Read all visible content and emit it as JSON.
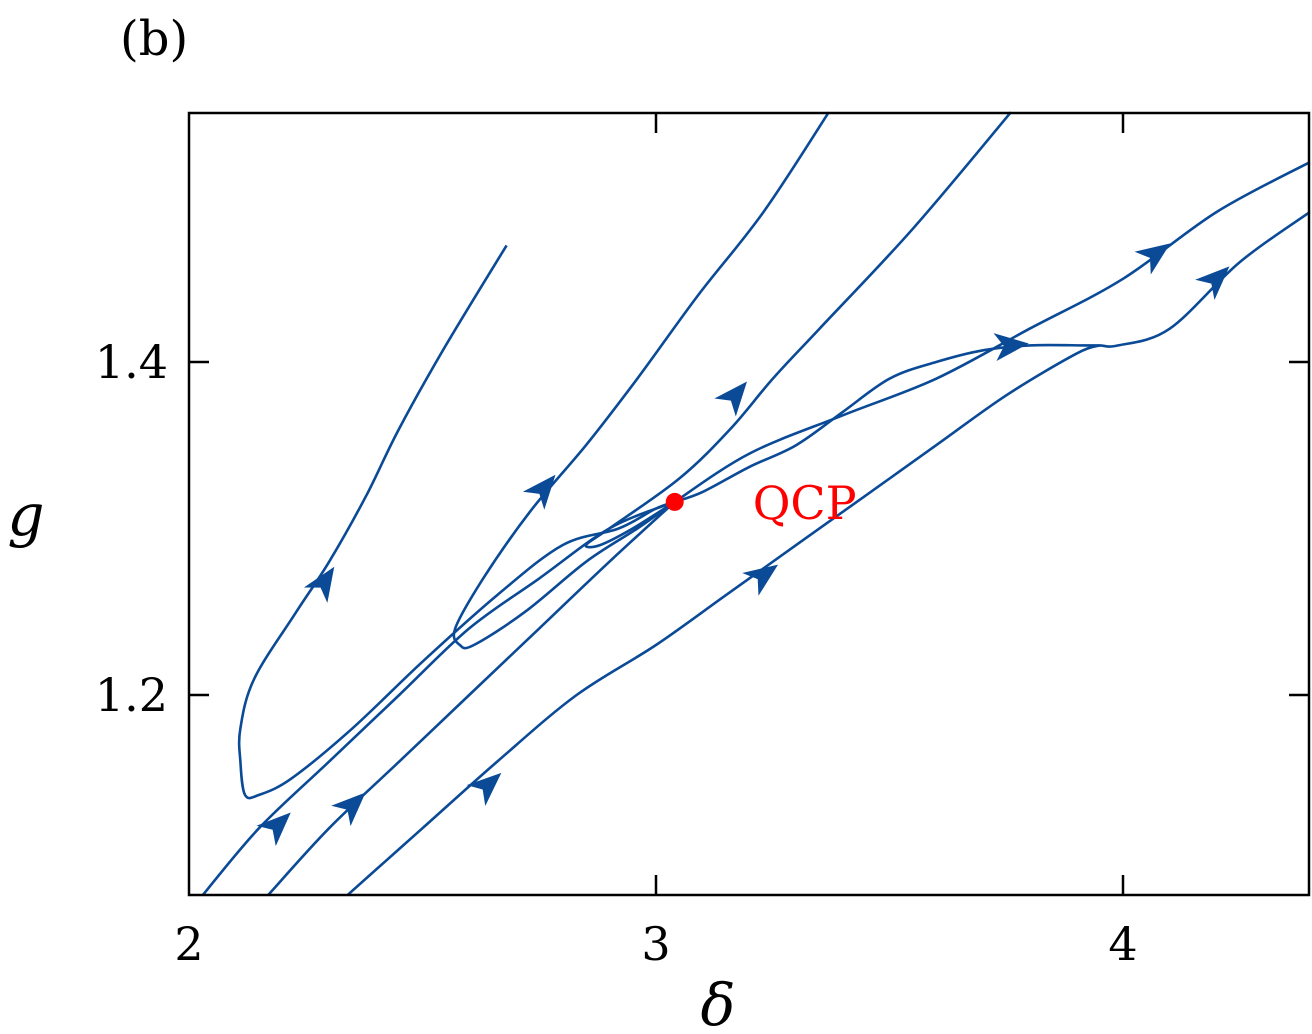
{
  "panel_label": "(b)",
  "colors": {
    "flow": "#0a4a96",
    "critical_point": "#ff0000",
    "axis": "#000000"
  },
  "chart_data": {
    "type": "line",
    "title": "",
    "xlabel": "δ",
    "ylabel": "g",
    "xlim": [
      2.0,
      4.4
    ],
    "ylim": [
      1.08,
      1.55
    ],
    "xticks": [
      2,
      3,
      4
    ],
    "xtick_labels": [
      "2",
      "3",
      "4"
    ],
    "yticks": [
      1.2,
      1.4
    ],
    "ytick_labels": [
      "1.2",
      "1.4"
    ],
    "grid": false,
    "legend": "none",
    "critical_point": {
      "label": "QCP",
      "x": 3.04,
      "y": 1.316
    },
    "series": [
      {
        "points": [
          [
            2.68,
            1.47
          ],
          [
            2.55,
            1.41
          ],
          [
            2.45,
            1.36
          ],
          [
            2.38,
            1.32
          ],
          [
            2.3,
            1.28
          ],
          [
            2.23,
            1.25
          ],
          [
            2.14,
            1.21
          ],
          [
            2.11,
            1.18
          ],
          [
            2.11,
            1.16
          ],
          [
            2.12,
            1.14
          ],
          [
            2.15,
            1.14
          ],
          [
            2.22,
            1.15
          ],
          [
            2.35,
            1.18
          ],
          [
            2.5,
            1.22
          ],
          [
            2.66,
            1.26
          ],
          [
            2.8,
            1.29
          ],
          [
            2.92,
            1.3
          ],
          [
            3.0,
            1.312
          ],
          [
            3.04,
            1.316
          ]
        ],
        "arrows": [
          [
            2.29,
            1.268,
            -1
          ]
        ]
      },
      {
        "points": [
          [
            3.37,
            1.55
          ],
          [
            3.23,
            1.49
          ],
          [
            3.09,
            1.44
          ],
          [
            2.96,
            1.39
          ],
          [
            2.85,
            1.35
          ],
          [
            2.73,
            1.31
          ],
          [
            2.63,
            1.27
          ],
          [
            2.57,
            1.24
          ],
          [
            2.58,
            1.23
          ],
          [
            2.61,
            1.23
          ],
          [
            2.72,
            1.25
          ],
          [
            2.85,
            1.28
          ],
          [
            2.96,
            1.3
          ],
          [
            3.04,
            1.316
          ]
        ],
        "arrows": [
          [
            2.76,
            1.324,
            -1
          ]
        ]
      },
      {
        "points": [
          [
            3.76,
            1.55
          ],
          [
            3.55,
            1.48
          ],
          [
            3.35,
            1.42
          ],
          [
            3.25,
            1.39
          ],
          [
            3.16,
            1.36
          ],
          [
            3.05,
            1.33
          ],
          [
            2.9,
            1.3
          ],
          [
            2.85,
            1.29
          ],
          [
            2.88,
            1.29
          ],
          [
            2.95,
            1.3
          ],
          [
            3.04,
            1.316
          ]
        ],
        "arrows": [
          [
            3.17,
            1.38,
            -1
          ]
        ]
      },
      {
        "points": [
          [
            4.4,
            1.52
          ],
          [
            4.2,
            1.49
          ],
          [
            4.0,
            1.45
          ],
          [
            3.8,
            1.42
          ],
          [
            3.6,
            1.39
          ],
          [
            3.4,
            1.368
          ],
          [
            3.2,
            1.345
          ],
          [
            3.04,
            1.316
          ]
        ],
        "arrows": [
          [
            4.07,
            1.465,
            -1
          ]
        ]
      },
      {
        "points": [
          [
            4.4,
            1.49
          ],
          [
            4.25,
            1.46
          ],
          [
            4.1,
            1.42
          ],
          [
            3.99,
            1.41
          ],
          [
            3.95,
            1.41
          ],
          [
            3.92,
            1.41
          ],
          [
            3.8,
            1.41
          ],
          [
            3.7,
            1.407
          ],
          [
            3.6,
            1.4
          ],
          [
            3.5,
            1.39
          ],
          [
            3.4,
            1.37
          ],
          [
            3.3,
            1.35
          ],
          [
            3.2,
            1.337
          ],
          [
            3.1,
            1.322
          ],
          [
            3.04,
            1.316
          ]
        ],
        "arrows": [
          [
            4.2,
            1.45,
            -1
          ],
          [
            3.76,
            1.41,
            -1
          ]
        ]
      },
      {
        "points": [
          [
            2.03,
            1.08
          ],
          [
            2.15,
            1.12
          ],
          [
            2.3,
            1.16
          ],
          [
            2.45,
            1.2
          ],
          [
            2.6,
            1.24
          ],
          [
            2.75,
            1.27
          ],
          [
            2.9,
            1.3
          ],
          [
            3.04,
            1.316
          ]
        ],
        "arrows": [
          [
            2.19,
            1.122,
            1
          ]
        ]
      },
      {
        "points": [
          [
            2.17,
            1.08
          ],
          [
            2.3,
            1.12
          ],
          [
            2.45,
            1.16
          ],
          [
            2.6,
            1.2
          ],
          [
            2.75,
            1.24
          ],
          [
            2.9,
            1.28
          ],
          [
            3.04,
            1.316
          ]
        ],
        "arrows": [
          [
            2.35,
            1.134,
            1
          ]
        ]
      },
      {
        "points": [
          [
            2.34,
            1.08
          ],
          [
            2.5,
            1.12
          ],
          [
            2.66,
            1.16
          ],
          [
            2.83,
            1.2
          ],
          [
            3.0,
            1.23
          ],
          [
            3.15,
            1.26
          ],
          [
            3.3,
            1.29
          ],
          [
            3.45,
            1.32
          ],
          [
            3.6,
            1.35
          ],
          [
            3.75,
            1.38
          ],
          [
            3.9,
            1.405
          ],
          [
            3.95,
            1.41
          ]
        ],
        "arrows": [
          [
            2.64,
            1.146,
            1
          ],
          [
            3.23,
            1.272,
            1
          ]
        ]
      }
    ]
  }
}
